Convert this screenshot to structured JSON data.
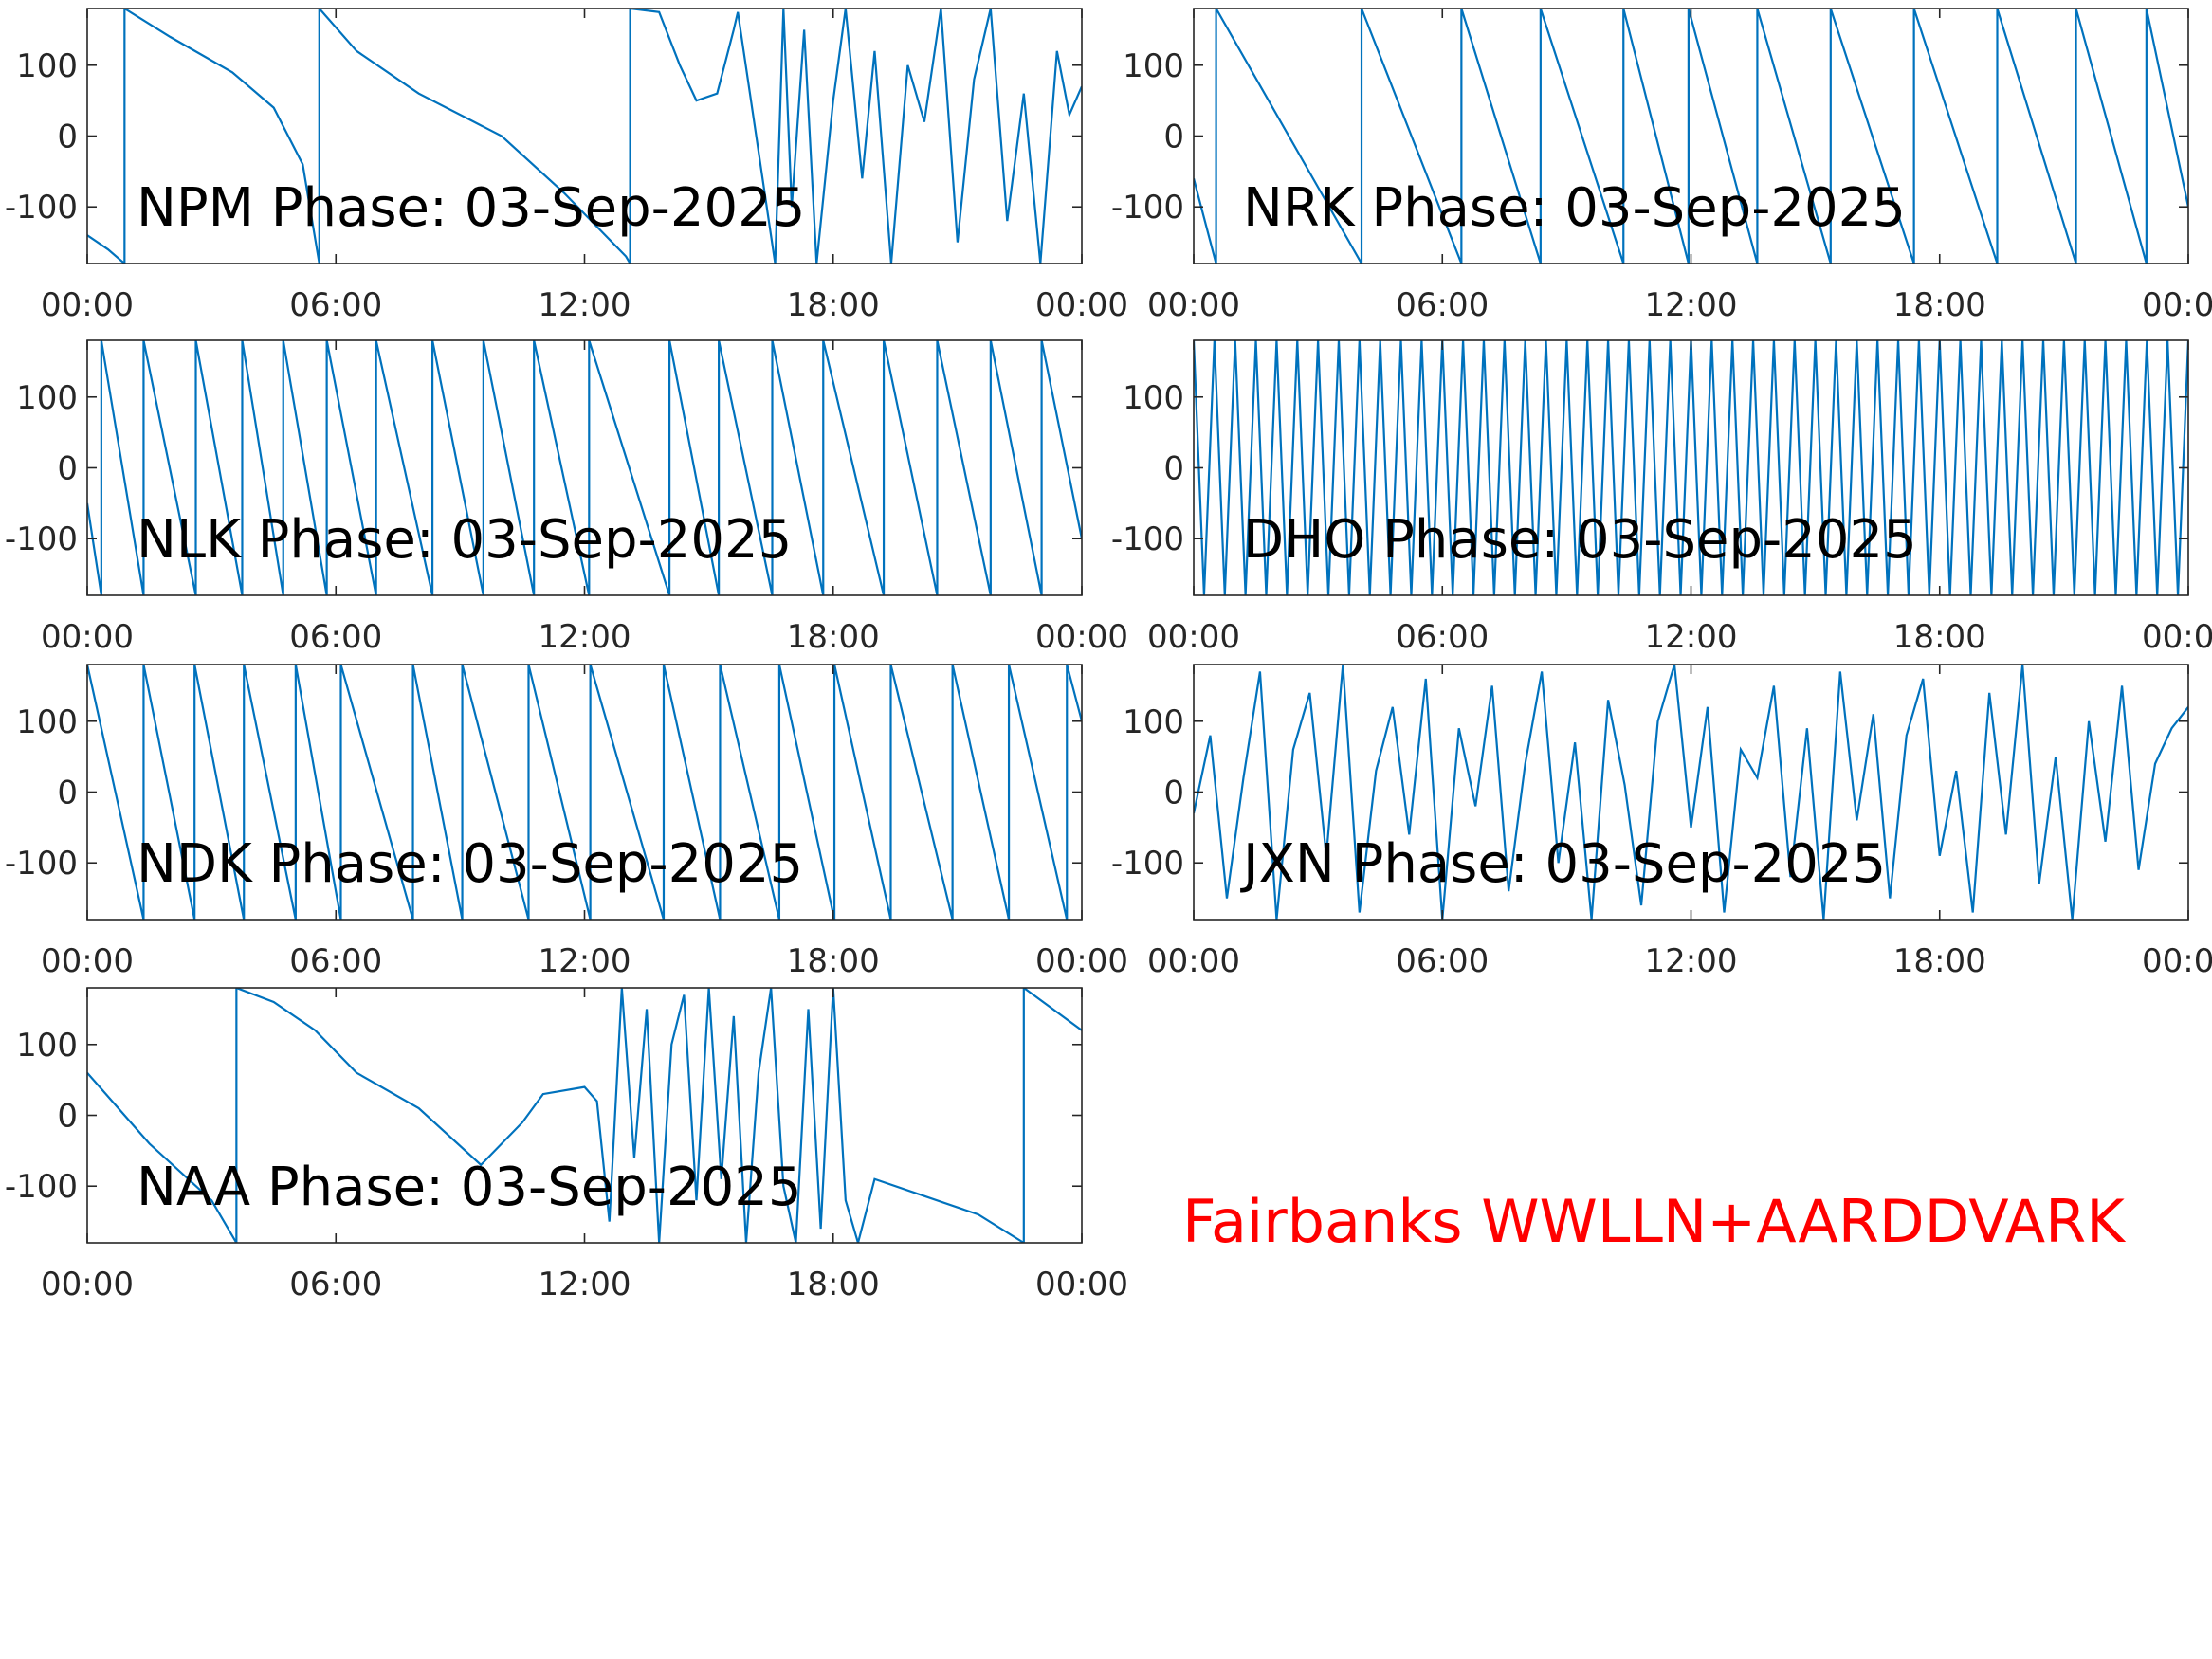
{
  "chart_data": [
    {
      "type": "line",
      "title": "NPM Phase: 03-Sep-2025",
      "color": "#0072bd",
      "x": [
        0,
        0.5,
        0.9,
        0.9,
        2,
        3.5,
        4.5,
        5.2,
        5.6,
        5.6,
        6.5,
        8,
        10,
        11.5,
        13,
        13.1,
        13.1,
        13.8,
        14.3,
        14.7,
        15.2,
        15.6,
        15.7,
        16.6,
        16.8,
        17,
        17.3,
        17.6,
        18,
        18.3,
        18.7,
        19,
        19.4,
        19.8,
        20.2,
        20.6,
        21,
        21.4,
        21.8,
        22.2,
        22.6,
        23,
        23.4,
        23.7,
        24
      ],
      "values": [
        -140,
        -160,
        -180,
        180,
        140,
        90,
        40,
        -40,
        -180,
        180,
        120,
        60,
        0,
        -80,
        -170,
        -180,
        180,
        175,
        100,
        50,
        60,
        150,
        175,
        -180,
        180,
        -100,
        150,
        -180,
        50,
        180,
        -60,
        120,
        -180,
        100,
        20,
        180,
        -150,
        80,
        180,
        -120,
        60,
        -180,
        120,
        30,
        70
      ],
      "xlim": [
        0,
        24
      ],
      "xticks": [
        {
          "value": 0,
          "label": "00:00"
        },
        {
          "value": 6,
          "label": "06:00"
        },
        {
          "value": 12,
          "label": "12:00"
        },
        {
          "value": 18,
          "label": "18:00"
        },
        {
          "value": 24,
          "label": "00:00"
        }
      ],
      "ylim": [
        -180,
        180
      ],
      "yticks": [
        -100,
        0,
        100
      ]
    },
    {
      "type": "line",
      "title": "NRK Phase: 03-Sep-2025",
      "color": "#0072bd",
      "x": [
        0,
        0.54,
        0.54,
        4.05,
        4.05,
        6.46,
        6.46,
        8.37,
        8.37,
        10.37,
        10.37,
        11.94,
        11.94,
        13.6,
        13.6,
        15.37,
        15.37,
        17.38,
        17.38,
        19.39,
        19.39,
        21.29,
        21.29,
        22.99,
        22.99,
        24
      ],
      "values": [
        -60,
        -180,
        180,
        -180,
        180,
        -180,
        180,
        -180,
        180,
        -180,
        180,
        -180,
        180,
        -180,
        180,
        -180,
        180,
        -180,
        180,
        -180,
        180,
        -180,
        180,
        -180,
        180,
        -100
      ],
      "xlim": [
        0,
        24
      ],
      "xticks": [
        {
          "value": 0,
          "label": "00:00"
        },
        {
          "value": 6,
          "label": "06:00"
        },
        {
          "value": 12,
          "label": "12:00"
        },
        {
          "value": 18,
          "label": "18:00"
        },
        {
          "value": 24,
          "label": "00:00"
        }
      ],
      "ylim": [
        -180,
        180
      ],
      "yticks": [
        -100,
        0,
        100
      ]
    },
    {
      "type": "line",
      "title": "NLK Phase: 03-Sep-2025",
      "color": "#0072bd",
      "x": [
        0,
        0.34,
        0.34,
        1.36,
        1.36,
        2.62,
        2.62,
        3.74,
        3.74,
        4.73,
        4.73,
        5.78,
        5.78,
        6.97,
        6.97,
        8.33,
        8.33,
        9.56,
        9.56,
        10.78,
        10.78,
        12.11,
        12.11,
        14.05,
        14.05,
        15.24,
        15.24,
        16.53,
        16.53,
        17.76,
        17.76,
        19.22,
        19.22,
        20.51,
        20.51,
        21.8,
        21.8,
        23.03,
        23.03,
        24
      ],
      "values": [
        -50,
        -180,
        180,
        -180,
        180,
        -180,
        180,
        -180,
        180,
        -180,
        180,
        -180,
        180,
        -180,
        180,
        -180,
        180,
        -180,
        180,
        -180,
        180,
        -180,
        180,
        -180,
        180,
        -180,
        180,
        -180,
        180,
        -180,
        180,
        -180,
        180,
        -180,
        180,
        -180,
        180,
        -180,
        180,
        -100
      ],
      "xlim": [
        0,
        24
      ],
      "xticks": [
        {
          "value": 0,
          "label": "00:00"
        },
        {
          "value": 6,
          "label": "06:00"
        },
        {
          "value": 12,
          "label": "12:00"
        },
        {
          "value": 18,
          "label": "18:00"
        },
        {
          "value": 24,
          "label": "00:00"
        }
      ],
      "ylim": [
        -180,
        180
      ],
      "yticks": [
        -100,
        0,
        100
      ]
    },
    {
      "type": "line",
      "title": "DHO Phase: 03-Sep-2025",
      "color": "#0072bd",
      "x": [
        0,
        0.25,
        0.5,
        0.75,
        1,
        1.25,
        1.5,
        1.75,
        2,
        2.25,
        2.5,
        2.75,
        3,
        3.25,
        3.5,
        3.75,
        4,
        4.25,
        4.5,
        4.75,
        5,
        5.25,
        5.5,
        5.75,
        6,
        6.25,
        6.5,
        6.75,
        7,
        7.25,
        7.5,
        7.75,
        8,
        8.25,
        8.5,
        8.75,
        9,
        9.25,
        9.5,
        9.75,
        10,
        10.25,
        10.5,
        10.75,
        11,
        11.25,
        11.5,
        11.75,
        12,
        12.25,
        12.5,
        12.75,
        13,
        13.25,
        13.5,
        13.75,
        14,
        14.25,
        14.5,
        14.75,
        15,
        15.25,
        15.5,
        15.75,
        16,
        16.25,
        16.5,
        16.75,
        17,
        17.25,
        17.5,
        17.75,
        18,
        18.25,
        18.5,
        18.75,
        19,
        19.25,
        19.5,
        19.75,
        20,
        20.25,
        20.5,
        20.75,
        21,
        21.25,
        21.5,
        21.75,
        22,
        22.25,
        22.5,
        22.75,
        23,
        23.25,
        23.5,
        23.75,
        24
      ],
      "values": [
        180,
        -180,
        180,
        -180,
        180,
        -180,
        180,
        -180,
        180,
        -180,
        180,
        -180,
        180,
        -180,
        180,
        -180,
        180,
        -180,
        180,
        -180,
        180,
        -180,
        180,
        -180,
        180,
        -180,
        180,
        -180,
        180,
        -180,
        180,
        -180,
        180,
        -180,
        180,
        -180,
        180,
        -180,
        180,
        -180,
        180,
        -180,
        180,
        -180,
        180,
        -180,
        180,
        -180,
        180,
        -180,
        180,
        -180,
        180,
        -180,
        180,
        -180,
        180,
        -180,
        180,
        -180,
        180,
        -180,
        180,
        -180,
        180,
        -180,
        180,
        -180,
        180,
        -180,
        180,
        -180,
        180,
        -180,
        180,
        -180,
        180,
        -180,
        180,
        -180,
        180,
        -180,
        180,
        -180,
        180,
        -180,
        180,
        -180,
        180,
        -180,
        180,
        -180,
        180,
        -180,
        180,
        -180,
        180
      ],
      "xlim": [
        0,
        24
      ],
      "xticks": [
        {
          "value": 0,
          "label": "00:00"
        },
        {
          "value": 6,
          "label": "06:00"
        },
        {
          "value": 12,
          "label": "12:00"
        },
        {
          "value": 18,
          "label": "18:00"
        },
        {
          "value": 24,
          "label": "00:00"
        }
      ],
      "ylim": [
        -180,
        180
      ],
      "yticks": [
        -100,
        0,
        100
      ]
    },
    {
      "type": "line",
      "title": "NDK Phase: 03-Sep-2025",
      "color": "#0072bd",
      "x": [
        0,
        1.36,
        1.36,
        2.59,
        2.59,
        3.78,
        3.78,
        5.03,
        5.03,
        6.12,
        6.12,
        7.86,
        7.86,
        9.05,
        9.05,
        10.65,
        10.65,
        12.14,
        12.14,
        13.91,
        13.91,
        15.27,
        15.27,
        16.7,
        16.7,
        18.03,
        18.03,
        19.39,
        19.39,
        20.88,
        20.88,
        22.24,
        22.24,
        23.64,
        23.64,
        24
      ],
      "values": [
        180,
        -180,
        180,
        -180,
        180,
        -180,
        180,
        -180,
        180,
        -180,
        180,
        -180,
        180,
        -180,
        180,
        -180,
        180,
        -180,
        180,
        -180,
        180,
        -180,
        180,
        -180,
        180,
        -180,
        180,
        -180,
        180,
        -180,
        180,
        -180,
        180,
        -180,
        180,
        100
      ],
      "xlim": [
        0,
        24
      ],
      "xticks": [
        {
          "value": 0,
          "label": "00:00"
        },
        {
          "value": 6,
          "label": "06:00"
        },
        {
          "value": 12,
          "label": "12:00"
        },
        {
          "value": 18,
          "label": "18:00"
        },
        {
          "value": 24,
          "label": "00:00"
        }
      ],
      "ylim": [
        -180,
        180
      ],
      "yticks": [
        -100,
        0,
        100
      ]
    },
    {
      "type": "line",
      "title": "JXN Phase: 03-Sep-2025",
      "color": "#0072bd",
      "x": [
        0,
        0.4,
        0.8,
        1.2,
        1.6,
        2,
        2.4,
        2.8,
        3.2,
        3.6,
        4,
        4.4,
        4.8,
        5.2,
        5.6,
        6,
        6.4,
        6.8,
        7.2,
        7.6,
        8,
        8.4,
        8.8,
        9.2,
        9.6,
        10,
        10.4,
        10.8,
        11.2,
        11.6,
        12,
        12.4,
        12.8,
        13.2,
        13.6,
        14,
        14.4,
        14.8,
        15.2,
        15.6,
        16,
        16.4,
        16.8,
        17.2,
        17.6,
        18,
        18.4,
        18.8,
        19.2,
        19.6,
        20,
        20.4,
        20.8,
        21.2,
        21.6,
        22,
        22.4,
        22.8,
        23.2,
        23.6,
        24
      ],
      "values": [
        -30,
        80,
        -150,
        20,
        170,
        -180,
        60,
        140,
        -90,
        180,
        -170,
        30,
        120,
        -60,
        160,
        -180,
        90,
        -20,
        150,
        -140,
        40,
        170,
        -100,
        70,
        -180,
        130,
        10,
        -160,
        100,
        180,
        -50,
        120,
        -170,
        60,
        20,
        150,
        -120,
        90,
        -180,
        170,
        -40,
        110,
        -150,
        80,
        160,
        -90,
        30,
        -170,
        140,
        -60,
        180,
        -130,
        50,
        -180,
        100,
        -70,
        150,
        -110,
        40,
        90,
        120
      ],
      "xlim": [
        0,
        24
      ],
      "xticks": [
        {
          "value": 0,
          "label": "00:00"
        },
        {
          "value": 6,
          "label": "06:00"
        },
        {
          "value": 12,
          "label": "12:00"
        },
        {
          "value": 18,
          "label": "18:00"
        },
        {
          "value": 24,
          "label": "00:00"
        }
      ],
      "ylim": [
        -180,
        180
      ],
      "yticks": [
        -100,
        0,
        100
      ]
    },
    {
      "type": "line",
      "title": "NAA Phase: 03-Sep-2025",
      "color": "#0072bd",
      "x": [
        0,
        1.5,
        3,
        3.6,
        3.6,
        4.5,
        5.5,
        6.5,
        8,
        9.5,
        10.5,
        11,
        12,
        12.3,
        12.6,
        12.9,
        13.2,
        13.5,
        13.8,
        14.1,
        14.4,
        14.7,
        15,
        15.3,
        15.6,
        15.9,
        16.2,
        16.5,
        16.8,
        17.1,
        17.4,
        17.7,
        18,
        18.3,
        18.6,
        19,
        20,
        21.5,
        22.6,
        22.6,
        24
      ],
      "values": [
        60,
        -40,
        -120,
        -180,
        180,
        160,
        120,
        60,
        10,
        -70,
        -10,
        30,
        40,
        20,
        -150,
        180,
        -60,
        150,
        -180,
        100,
        170,
        -120,
        180,
        -90,
        140,
        -180,
        60,
        180,
        -100,
        -180,
        150,
        -160,
        180,
        -120,
        -180,
        -90,
        -110,
        -140,
        -180,
        180,
        120
      ],
      "xlim": [
        0,
        24
      ],
      "xticks": [
        {
          "value": 0,
          "label": "00:00"
        },
        {
          "value": 6,
          "label": "06:00"
        },
        {
          "value": 12,
          "label": "12:00"
        },
        {
          "value": 18,
          "label": "18:00"
        },
        {
          "value": 24,
          "label": "00:00"
        }
      ],
      "ylim": [
        -180,
        180
      ],
      "yticks": [
        -100,
        0,
        100
      ]
    }
  ],
  "annotation": {
    "text": "Fairbanks WWLLN+AARDDVARK",
    "color": "#ff0000"
  }
}
